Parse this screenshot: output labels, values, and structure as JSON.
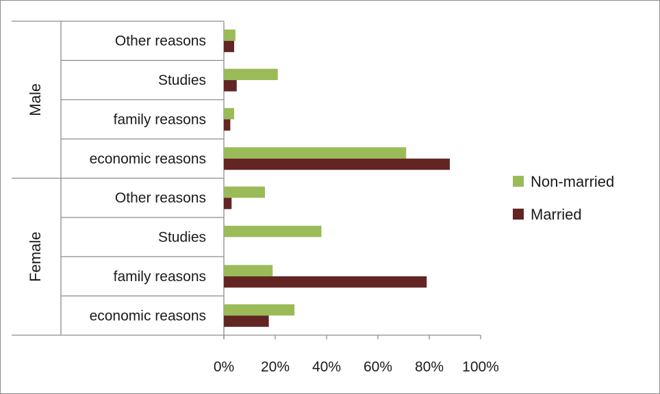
{
  "chart_data": {
    "type": "bar",
    "orientation": "horizontal",
    "groups": [
      {
        "name": "Male",
        "categories": [
          "Other reasons",
          "Studies",
          "family reasons",
          "economic reasons"
        ]
      },
      {
        "name": "Female",
        "categories": [
          "Other reasons",
          "Studies",
          "family reasons",
          "economic reasons"
        ]
      }
    ],
    "series": [
      {
        "name": "Non-married",
        "color": "#9bbb59",
        "values": [
          4.5,
          21,
          4,
          71,
          16,
          38,
          19,
          27.5
        ]
      },
      {
        "name": "Married",
        "color": "#632523",
        "values": [
          4,
          5,
          2.5,
          88,
          3,
          0,
          79,
          17.5
        ]
      }
    ],
    "xlim": [
      0,
      100
    ],
    "xticks": [
      "0%",
      "20%",
      "40%",
      "60%",
      "80%",
      "100%"
    ],
    "xticks_values": [
      0,
      20,
      40,
      60,
      80,
      100
    ],
    "title": "",
    "xlabel": "",
    "ylabel": "",
    "grid": false,
    "legend": "right"
  }
}
